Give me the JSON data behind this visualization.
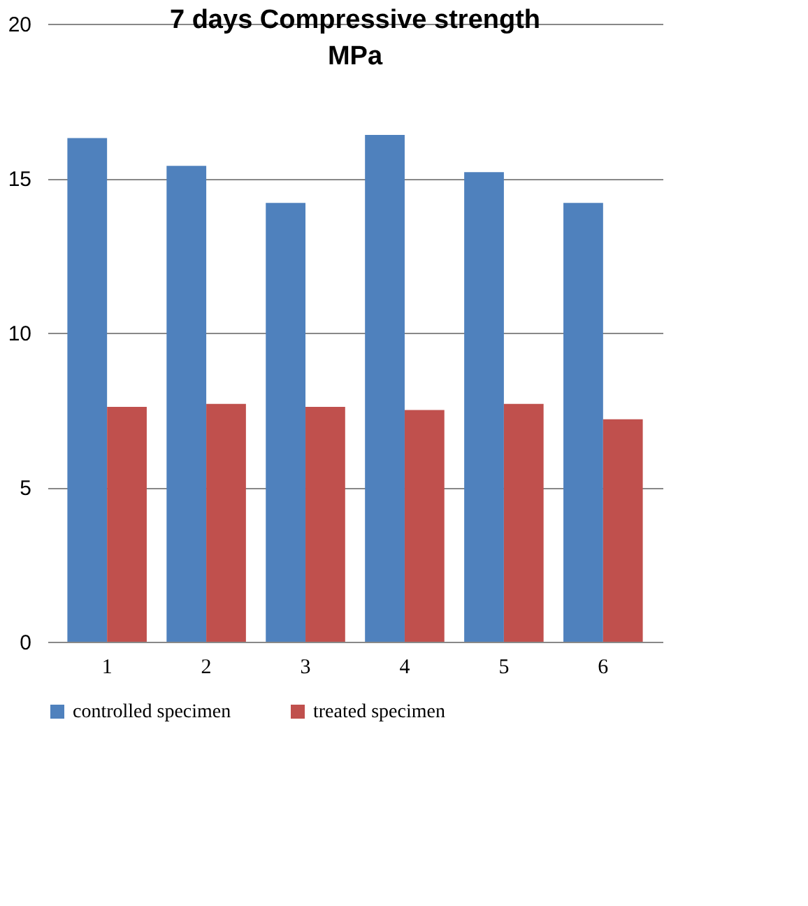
{
  "chart_data": {
    "type": "bar",
    "title": "7 days Compressive strength MPa",
    "categories": [
      "1",
      "2",
      "3",
      "4",
      "5",
      "6"
    ],
    "series": [
      {
        "name": "controlled specimen",
        "color": "#4f81bd",
        "values": [
          16.3,
          15.4,
          14.2,
          16.4,
          15.2,
          14.2
        ]
      },
      {
        "name": "treated specimen",
        "color": "#c0504d",
        "values": [
          7.6,
          7.7,
          7.6,
          7.5,
          7.7,
          7.2
        ]
      }
    ],
    "ylim": [
      0,
      20
    ],
    "yticks": [
      0,
      5,
      10,
      15,
      20
    ],
    "grid": "y",
    "legend": "bottom"
  }
}
